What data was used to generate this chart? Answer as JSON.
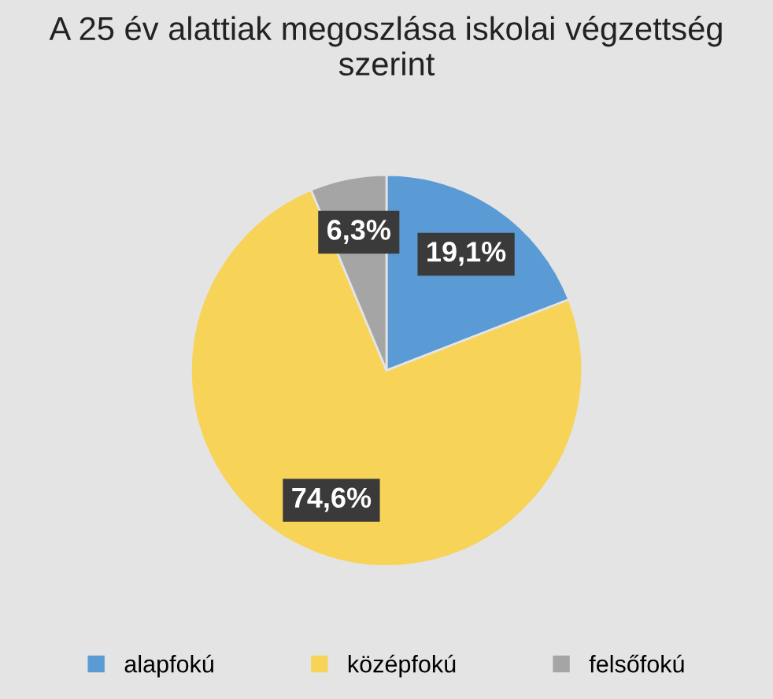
{
  "chart_data": {
    "type": "pie",
    "title": "A 25 év alattiak megoszlása iskolai végzettség szerint",
    "categories": [
      "alapfokú",
      "középfokú",
      "felsőfokú"
    ],
    "values": [
      19.1,
      74.6,
      6.3
    ],
    "value_labels": [
      "19,1%",
      "74,6%",
      "6,3%"
    ],
    "colors": [
      "#5b9bd5",
      "#f7d358",
      "#a5a5a5"
    ],
    "legend": "bottom"
  }
}
